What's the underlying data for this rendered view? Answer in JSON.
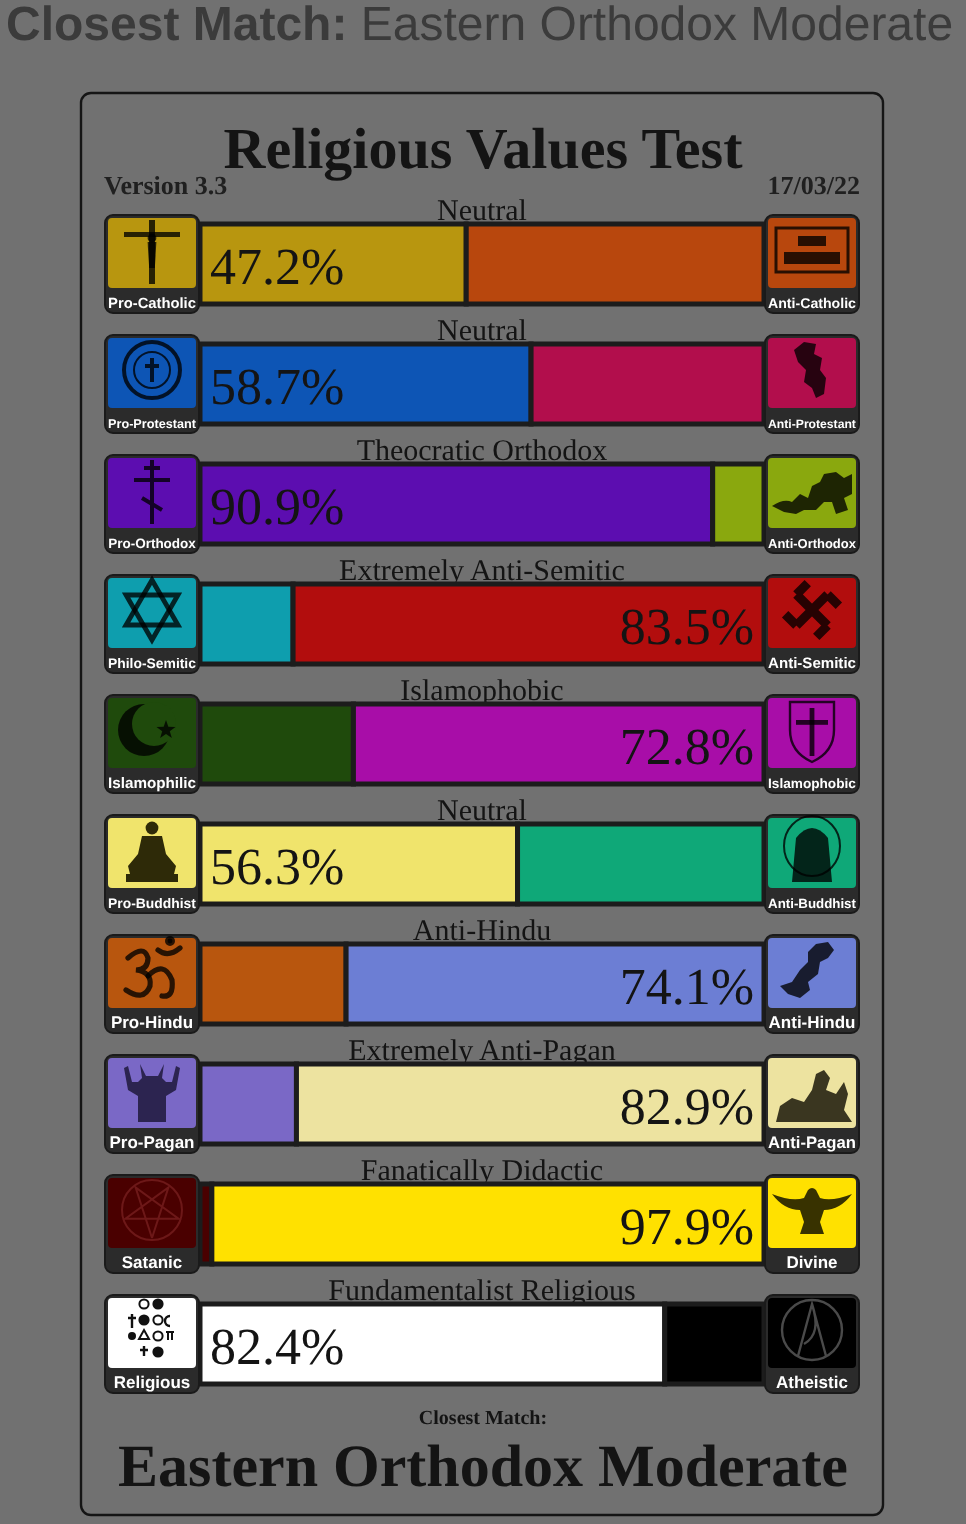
{
  "chart_data": {
    "type": "bar",
    "orientation": "horizontal",
    "stacked": true,
    "title": "Religious Values Test",
    "categories": [
      "Pro-Catholic",
      "Pro-Protestant",
      "Pro-Orthodox",
      "Philo-Semitic",
      "Islamophilic",
      "Pro-Buddhist",
      "Pro-Hindu",
      "Pro-Pagan",
      "Satanic",
      "Religious"
    ],
    "y2_categories": [
      "Anti-Catholic",
      "Anti-Protestant",
      "Anti-Orthodox",
      "Anti-Semitic",
      "Islamophobic",
      "Anti-Buddhist",
      "Anti-Hindu",
      "Anti-Pagan",
      "Divine",
      "Atheistic"
    ],
    "xlim": [
      0,
      100
    ],
    "series": [
      {
        "values": [
          47.2,
          58.7,
          90.9,
          16.5,
          27.2,
          56.3,
          25.9,
          17.1,
          2.1,
          82.4
        ],
        "colors": [
          "#b8960f",
          "#0d55b5",
          "#5c0db0",
          "#0e9eae",
          "#1f4a0c",
          "#f0e46c",
          "#b8560e",
          "#7a68c6",
          "#4a0000",
          "#ffffff"
        ],
        "value_labels": [
          "47.2%",
          "58.7%",
          "90.9%",
          null,
          null,
          "56.3%",
          null,
          null,
          null,
          "82.4%"
        ]
      },
      {
        "values": [
          52.8,
          41.3,
          9.1,
          83.5,
          72.8,
          43.7,
          74.1,
          82.9,
          97.9,
          17.6
        ],
        "colors": [
          "#b8470d",
          "#b20e4c",
          "#8aa80e",
          "#b20d0d",
          "#a80da8",
          "#0fa878",
          "#6c7ed4",
          "#ede3a0",
          "#ffe100",
          "#000000"
        ],
        "value_labels": [
          null,
          null,
          null,
          "83.5%",
          "72.8%",
          null,
          "74.1%",
          "82.9%",
          "97.9%",
          null
        ]
      }
    ],
    "annotations": [
      "Closest Match:",
      "Eastern Orthodox Moderate",
      "Version 3.3",
      "17/03/22",
      "Closest Match:",
      "Eastern Orthodox Moderate",
      "Neutral",
      "Neutral",
      "Theocratic Orthodox",
      "Extremely Anti-Semitic",
      "Islamophobic",
      "Neutral",
      "Anti-Hindu",
      "Extremely Anti-Pagan",
      "Fanatically Didactic",
      "Fundamentalist Religious"
    ]
  }
}
